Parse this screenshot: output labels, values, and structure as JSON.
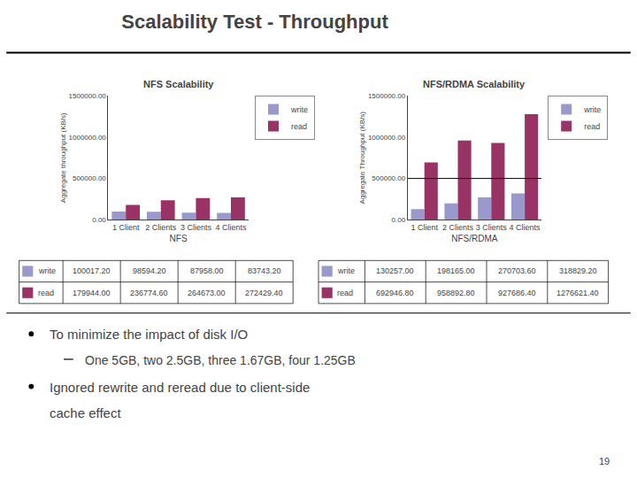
{
  "title": "Scalability Test - Throughput",
  "chart_data": [
    {
      "type": "bar",
      "title": "NFS Scalability",
      "xlabel": "NFS",
      "ylabel": "Aggregate throughput (KB/s)",
      "categories": [
        "1 Client",
        "2 Clients",
        "3 Clients",
        "4 Clients"
      ],
      "series": [
        {
          "name": "write",
          "color": "#9999CC",
          "values": [
            100017.2,
            98594.2,
            87958.0,
            83743.2
          ],
          "value_labels": [
            "100017.20",
            "98594.20",
            "87958.00",
            "83743.20"
          ]
        },
        {
          "name": "read",
          "color": "#993366",
          "values": [
            179944.0,
            236774.6,
            264673.0,
            272429.4
          ],
          "value_labels": [
            "179944.00",
            "236774.60",
            "264673.00",
            "272429.40"
          ]
        }
      ],
      "ylim": [
        0,
        1500000
      ],
      "yticks": [
        {
          "value": 0,
          "label": "0.00"
        },
        {
          "value": 500000,
          "label": "500000.00"
        },
        {
          "value": 1000000,
          "label": "1000000.00"
        },
        {
          "value": 1500000,
          "label": "1500000.00"
        }
      ],
      "grid": false,
      "legend": "upper right"
    },
    {
      "type": "bar",
      "title": "NFS/RDMA Scalability",
      "xlabel": "NFS/RDMA",
      "ylabel": "Aggregate Throughput (KB/s)",
      "categories": [
        "1 Client",
        "2 Clients",
        "3 Clients",
        "4 Clients"
      ],
      "series": [
        {
          "name": "write",
          "color": "#9999CC",
          "values": [
            130257.0,
            198165.0,
            270703.6,
            318829.2
          ],
          "value_labels": [
            "130257.00",
            "198165.00",
            "270703.60",
            "318829.20"
          ]
        },
        {
          "name": "read",
          "color": "#993366",
          "values": [
            692946.8,
            958892.8,
            927686.4,
            1276621.4
          ],
          "value_labels": [
            "692946.80",
            "958892.80",
            "927686.40",
            "1276621.40"
          ]
        }
      ],
      "ylim": [
        0,
        1500000
      ],
      "yticks": [
        {
          "value": 0,
          "label": "0.00"
        },
        {
          "value": 500000,
          "label": "500000.00"
        },
        {
          "value": 1000000,
          "label": "1000000.00"
        },
        {
          "value": 1500000,
          "label": "1500000.00"
        }
      ],
      "reference_line": 500000,
      "grid": false,
      "legend": "upper right"
    }
  ],
  "bullets": [
    {
      "lines": [
        "To minimize the impact of disk I/O"
      ],
      "sub": [
        "One 5GB, two 2.5GB, three 1.67GB, four 1.25GB"
      ]
    },
    {
      "lines": [
        "Ignored rewrite and reread due to client-side",
        "cache effect"
      ],
      "sub": []
    }
  ],
  "page_number": "19"
}
